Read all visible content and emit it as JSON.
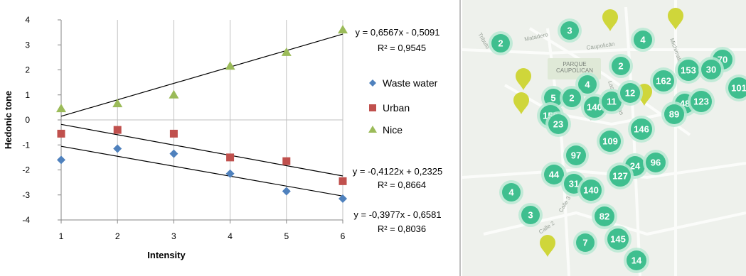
{
  "chart_data": {
    "type": "scatter",
    "xlabel": "Intensity",
    "ylabel": "Hedonic tone",
    "xlim": [
      1,
      6
    ],
    "ylim": [
      -4,
      4
    ],
    "x_ticks": [
      1,
      2,
      3,
      4,
      5,
      6
    ],
    "y_ticks": [
      4,
      3,
      2,
      1,
      0,
      -1,
      -2,
      -3,
      -4
    ],
    "grid": "vertical",
    "legend_position": "right",
    "series": [
      {
        "name": "Waste water",
        "marker": "diamond",
        "color": "#4f81bd",
        "x": [
          1,
          2,
          3,
          4,
          5,
          6
        ],
        "y": [
          -1.6,
          -1.15,
          -1.35,
          -2.15,
          -2.85,
          -3.15
        ],
        "trendline": {
          "slope": -0.3977,
          "intercept": -0.6581,
          "equation": "y = -0,3977x - 0,6581",
          "r2": "R² = 0,8036"
        }
      },
      {
        "name": "Urban",
        "marker": "square",
        "color": "#c0504d",
        "x": [
          1,
          2,
          3,
          4,
          5,
          6
        ],
        "y": [
          -0.55,
          -0.4,
          -0.55,
          -1.5,
          -1.65,
          -2.45
        ],
        "trendline": {
          "slope": -0.4122,
          "intercept": 0.2325,
          "equation": "y = -0,4122x + 0,2325",
          "r2": "R² = 0,8664"
        }
      },
      {
        "name": "Nice",
        "marker": "triangle",
        "color": "#9bbb59",
        "x": [
          1,
          2,
          3,
          4,
          5,
          6
        ],
        "y": [
          0.45,
          0.65,
          1.0,
          2.15,
          2.7,
          3.6
        ],
        "trendline": {
          "slope": 0.6567,
          "intercept": -0.5091,
          "equation": "y = 0,6567x - 0,5091",
          "r2": "R² = 0,9545"
        }
      }
    ]
  },
  "map": {
    "park_label_1": "PARQUE",
    "park_label_2": "CAUPOLICAN",
    "streets": [
      "Matadero",
      "Caupolicán",
      "Tributo",
      "Michimalongo",
      "Las Avutardas",
      "Las Alcaparras",
      "Calle 2",
      "Calle 3"
    ],
    "cluster_color": "#3fbf8f",
    "cluster_halo": "#b9e9d4",
    "marker_color": "#cfd63a",
    "clusters": [
      "2",
      "3",
      "4",
      "153",
      "70",
      "30",
      "101",
      "2",
      "162",
      "4",
      "5",
      "2",
      "140",
      "11",
      "12",
      "150",
      "23",
      "48",
      "123",
      "89",
      "146",
      "109",
      "97",
      "24",
      "96",
      "44",
      "127",
      "31",
      "140",
      "4",
      "3",
      "82",
      "7",
      "145",
      "14"
    ]
  }
}
